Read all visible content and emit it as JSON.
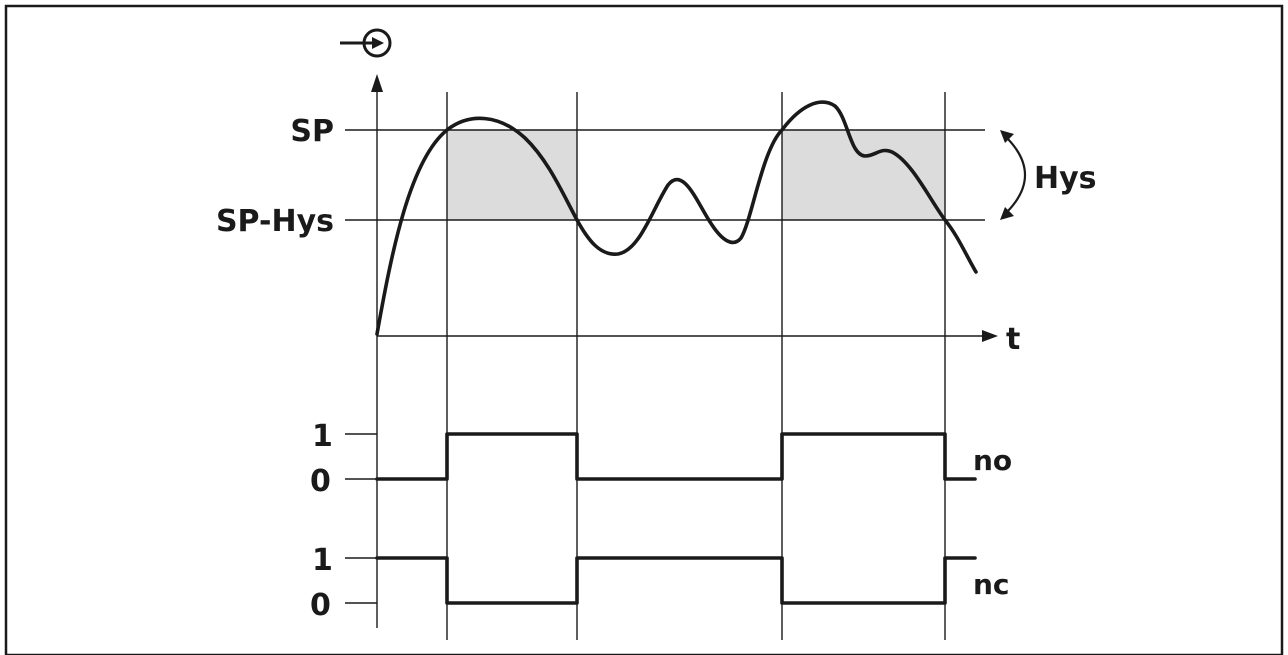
{
  "input_icon": "input-arrow-circle-icon",
  "labels": {
    "sp": "SP",
    "sp_hys": "SP-Hys",
    "hys": "Hys",
    "t": "t",
    "no": "no",
    "nc": "nc",
    "no_one": "1",
    "no_zero": "0",
    "nc_one": "1",
    "nc_zero": "0"
  },
  "colors": {
    "line": "#1a1a1a",
    "hysteresis_fill": "#dcdcdc",
    "background": "#ffffff"
  }
}
